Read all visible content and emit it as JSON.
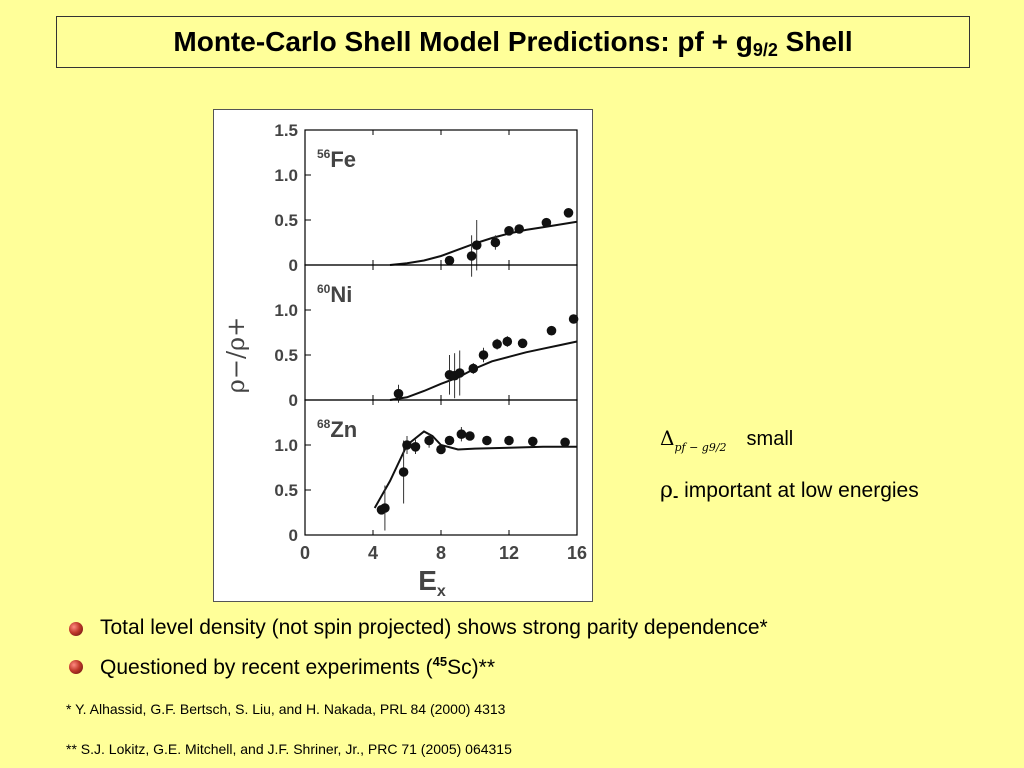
{
  "title": {
    "main": "Monte-Carlo Shell Model Predictions:  pf + g",
    "sub": "9/2",
    "tail": " Shell"
  },
  "notes": {
    "delta_symbol": "Δ",
    "delta_subscript": "pf − g9/2",
    "delta_text": "small",
    "rho_symbol": "ρ",
    "rho_subscript": "-",
    "rho_text": " important at low energies"
  },
  "bullets": [
    {
      "pre": "Total level density (not spin projected) shows strong parity dependence*",
      "sup": "",
      "post": ""
    },
    {
      "pre": "Questioned by recent experiments (",
      "sup": "45",
      "post": "Sc)**"
    }
  ],
  "references": [
    "*  Y. Alhassid, G.F. Bertsch, S. Liu, and H. Nakada, PRL 84 (2000) 4313",
    "**  S.J. Lokitz, G.E. Mitchell, and J.F. Shriner, Jr., PRC 71 (2005) 064315"
  ],
  "chart_data": {
    "type": "scatter",
    "xlabel": "E",
    "xlabel_sub": "x",
    "ylabel": "ρ−/ρ+",
    "xlim": [
      0,
      16
    ],
    "ylim": [
      0,
      1.5
    ],
    "xticks": [
      "0",
      "4",
      "8",
      "12",
      "16"
    ],
    "xtick_values": [
      0,
      4,
      8,
      12,
      16
    ],
    "yticks": [
      "0",
      "0.5",
      "1.0",
      "1.5"
    ],
    "yticks_lower": [
      "0",
      "0.5",
      "1.0"
    ],
    "ytick_values": [
      0,
      0.5,
      1.0,
      1.5
    ],
    "panels": [
      {
        "label_mass": "56",
        "label_el": "Fe",
        "points": [
          [
            8.5,
            0.05
          ],
          [
            9.8,
            0.1
          ],
          [
            10.1,
            0.22
          ],
          [
            11.2,
            0.25
          ],
          [
            12.0,
            0.38
          ],
          [
            12.6,
            0.4
          ],
          [
            14.2,
            0.47
          ],
          [
            15.5,
            0.58
          ]
        ],
        "errors": [
          0,
          0.23,
          0.28,
          0.08,
          0.04,
          0.04,
          0.04,
          0.04
        ],
        "curve": [
          [
            5.0,
            0.0
          ],
          [
            6.0,
            0.02
          ],
          [
            7.0,
            0.05
          ],
          [
            8.0,
            0.1
          ],
          [
            9.0,
            0.17
          ],
          [
            10.0,
            0.24
          ],
          [
            11.0,
            0.3
          ],
          [
            12.0,
            0.35
          ],
          [
            13.0,
            0.39
          ],
          [
            14.0,
            0.42
          ],
          [
            15.0,
            0.45
          ],
          [
            16.0,
            0.48
          ]
        ]
      },
      {
        "label_mass": "60",
        "label_el": "Ni",
        "points": [
          [
            5.5,
            0.07
          ],
          [
            8.5,
            0.28
          ],
          [
            8.8,
            0.27
          ],
          [
            9.1,
            0.3
          ],
          [
            9.9,
            0.35
          ],
          [
            10.5,
            0.5
          ],
          [
            11.3,
            0.62
          ],
          [
            11.9,
            0.65
          ],
          [
            12.8,
            0.63
          ],
          [
            14.5,
            0.77
          ],
          [
            15.8,
            0.9
          ]
        ],
        "errors": [
          0.1,
          0.22,
          0.25,
          0.25,
          0.06,
          0.08,
          0.06,
          0.06,
          0.04,
          0.04,
          0.04
        ],
        "curve": [
          [
            5.0,
            0.0
          ],
          [
            6.0,
            0.03
          ],
          [
            7.0,
            0.1
          ],
          [
            8.0,
            0.18
          ],
          [
            9.0,
            0.25
          ],
          [
            10.0,
            0.35
          ],
          [
            11.0,
            0.43
          ],
          [
            12.0,
            0.48
          ],
          [
            13.0,
            0.53
          ],
          [
            14.0,
            0.57
          ],
          [
            15.0,
            0.61
          ],
          [
            16.0,
            0.65
          ]
        ]
      },
      {
        "label_mass": "68",
        "label_el": "Zn",
        "points": [
          [
            4.5,
            0.28
          ],
          [
            4.7,
            0.3
          ],
          [
            5.8,
            0.7
          ],
          [
            6.0,
            1.0
          ],
          [
            6.5,
            0.98
          ],
          [
            7.3,
            1.05
          ],
          [
            8.0,
            0.95
          ],
          [
            8.5,
            1.05
          ],
          [
            9.2,
            1.12
          ],
          [
            9.7,
            1.1
          ],
          [
            10.7,
            1.05
          ],
          [
            12.0,
            1.05
          ],
          [
            13.4,
            1.04
          ],
          [
            15.3,
            1.03
          ]
        ],
        "errors": [
          0.05,
          0.25,
          0.35,
          0.1,
          0.08,
          0.08,
          0.05,
          0.05,
          0.08,
          0.05,
          0.05,
          0.05,
          0.04,
          0.04
        ],
        "curve": [
          [
            4.1,
            0.3
          ],
          [
            5.0,
            0.6
          ],
          [
            6.0,
            1.0
          ],
          [
            7.0,
            1.15
          ],
          [
            7.5,
            1.1
          ],
          [
            8.0,
            1.0
          ],
          [
            9.0,
            0.95
          ],
          [
            10.0,
            0.96
          ],
          [
            12.0,
            0.97
          ],
          [
            14.0,
            0.98
          ],
          [
            16.0,
            0.98
          ]
        ]
      }
    ]
  }
}
